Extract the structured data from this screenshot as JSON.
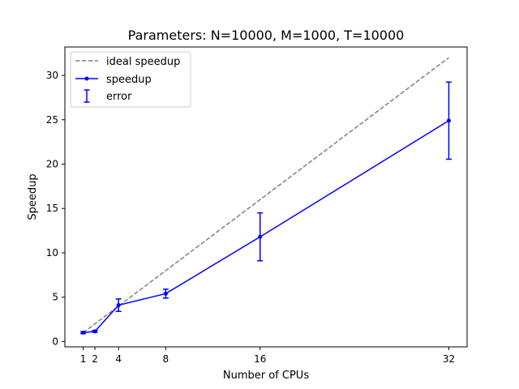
{
  "chart_data": {
    "type": "line",
    "title": "Parameters: N=10000, M=1000, T=10000",
    "xlabel": "Number of CPUs",
    "ylabel": "Speedup",
    "xlim": [
      -0.55,
      33.55
    ],
    "ylim": [
      -0.6,
      33.2
    ],
    "xticks": [
      1,
      2,
      4,
      8,
      16,
      32
    ],
    "yticks": [
      0,
      5,
      10,
      15,
      20,
      25,
      30
    ],
    "grid": false,
    "legend_placement": "upper-left",
    "series": [
      {
        "name": "ideal speedup",
        "style": "dashed",
        "color": "#808080",
        "x": [
          1,
          2,
          4,
          8,
          16,
          32
        ],
        "y": [
          1,
          2,
          4,
          8,
          16,
          32
        ]
      },
      {
        "name": "speedup",
        "style": "solid-markers",
        "color": "#0000ff",
        "x": [
          1,
          2,
          4,
          8,
          16,
          32
        ],
        "y": [
          1.0,
          1.15,
          4.1,
          5.4,
          11.8,
          24.9
        ]
      },
      {
        "name": "error",
        "style": "errorbar",
        "color": "#0000ff",
        "x": [
          1,
          2,
          4,
          8,
          16,
          32
        ],
        "y": [
          1.0,
          1.15,
          4.1,
          5.4,
          11.8,
          24.9
        ],
        "err": [
          0.1,
          0.1,
          0.7,
          0.5,
          2.7,
          4.35
        ]
      }
    ]
  }
}
